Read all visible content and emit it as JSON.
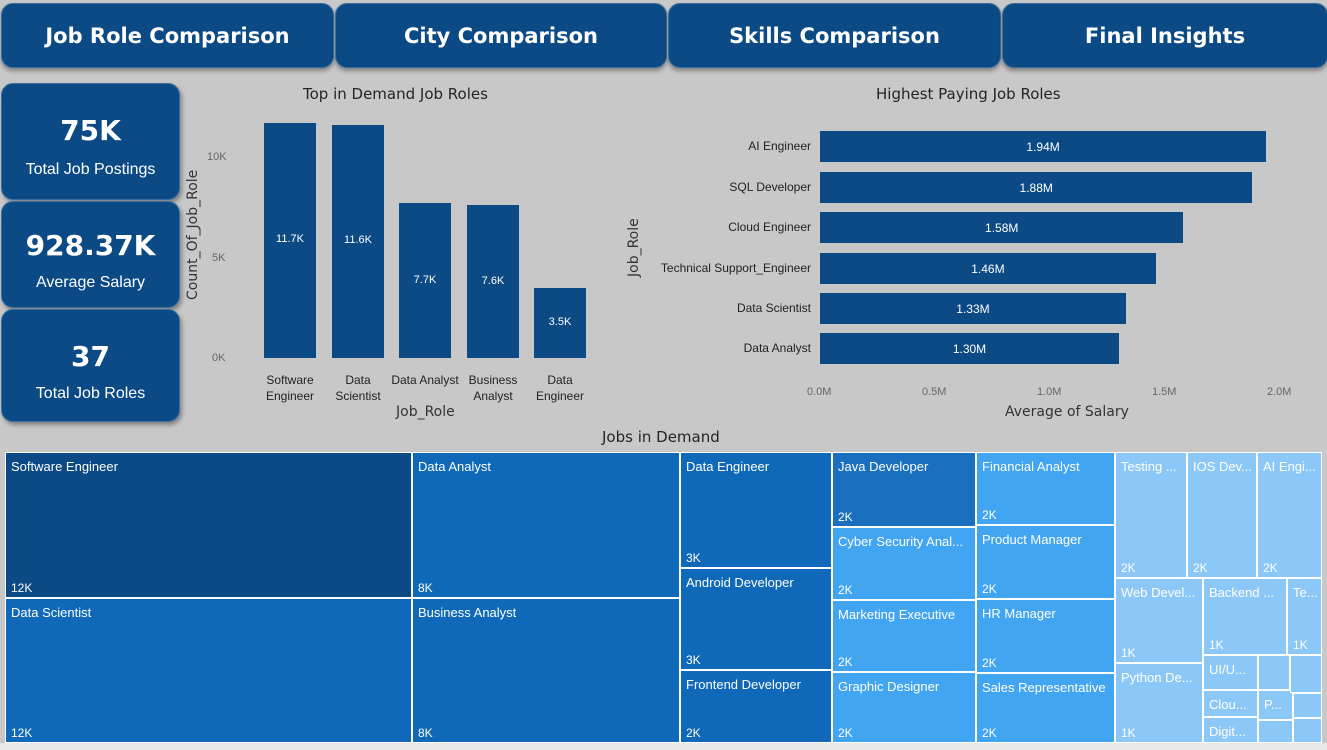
{
  "tabs": [
    "Job Role Comparison",
    "City Comparison",
    "Skills Comparison",
    "Final Insights"
  ],
  "kpis": [
    {
      "value": "75K",
      "label": "Total Job Postings"
    },
    {
      "value": "928.37K",
      "label": "Average Salary"
    },
    {
      "value": "37",
      "label": "Total Job Roles"
    }
  ],
  "chart_data": [
    {
      "type": "bar",
      "title": "Top in Demand Job Roles",
      "xlabel": "Job_Role",
      "ylabel": "Count_Of_Job_Role",
      "categories": [
        "Software Engineer",
        "Data Scientist",
        "Data Analyst",
        "Business Analyst",
        "Data Engineer"
      ],
      "values": [
        11700,
        11600,
        7700,
        7600,
        3500
      ],
      "data_labels": [
        "11.7K",
        "11.6K",
        "7.7K",
        "7.6K",
        "3.5K"
      ],
      "y_ticks": [
        "0K",
        "5K",
        "10K"
      ],
      "ylim": [
        0,
        12600
      ]
    },
    {
      "type": "bar",
      "orientation": "horizontal",
      "title": "Highest Paying Job Roles",
      "xlabel": "Average of Salary",
      "ylabel": "Job_Role",
      "categories": [
        "AI Engineer",
        "SQL Developer",
        "Cloud Engineer",
        "Technical Support_Engineer",
        "Data Scientist",
        "Data Analyst"
      ],
      "values": [
        1940000,
        1880000,
        1580000,
        1460000,
        1330000,
        1300000
      ],
      "data_labels": [
        "1.94M",
        "1.88M",
        "1.58M",
        "1.46M",
        "1.33M",
        "1.30M"
      ],
      "x_ticks": [
        "0.0M",
        "0.5M",
        "1.0M",
        "1.5M",
        "2.0M"
      ],
      "xlim": [
        0,
        2000000
      ]
    }
  ],
  "treemap": {
    "title": "Jobs in Demand",
    "cells": [
      {
        "name": "Software Engineer",
        "value": "12K"
      },
      {
        "name": "Data Scientist",
        "value": "12K"
      },
      {
        "name": "Data Analyst",
        "value": "8K"
      },
      {
        "name": "Business Analyst",
        "value": "8K"
      },
      {
        "name": "Data Engineer",
        "value": "3K"
      },
      {
        "name": "Android Developer",
        "value": "3K"
      },
      {
        "name": "Frontend Developer",
        "value": "2K"
      },
      {
        "name": "Java Developer",
        "value": "2K"
      },
      {
        "name": "Cyber Security Anal...",
        "value": "2K"
      },
      {
        "name": "Marketing Executive",
        "value": "2K"
      },
      {
        "name": "Graphic Designer",
        "value": "2K"
      },
      {
        "name": "Financial Analyst",
        "value": "2K"
      },
      {
        "name": "Product Manager",
        "value": "2K"
      },
      {
        "name": "HR Manager",
        "value": "2K"
      },
      {
        "name": "Sales Representative",
        "value": "2K"
      },
      {
        "name": "Testing ...",
        "value": "2K"
      },
      {
        "name": "IOS Dev...",
        "value": "2K"
      },
      {
        "name": "AI Engi...",
        "value": "2K"
      },
      {
        "name": "Web Devel...",
        "value": "1K"
      },
      {
        "name": "Backend ...",
        "value": "1K"
      },
      {
        "name": "Te...",
        "value": "1K"
      },
      {
        "name": "Python De...",
        "value": "1K"
      },
      {
        "name": "UI/U...",
        "value": ""
      },
      {
        "name": "Clou...",
        "value": ""
      },
      {
        "name": "Digit...",
        "value": ""
      },
      {
        "name": "P...",
        "value": ""
      }
    ]
  }
}
